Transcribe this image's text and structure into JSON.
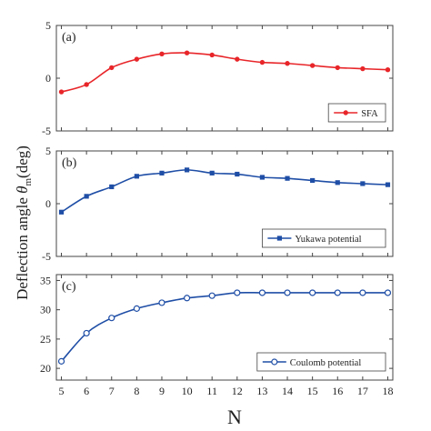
{
  "chart_data": [
    {
      "type": "line",
      "panel_label": "(a)",
      "x": [
        5,
        6,
        7,
        8,
        9,
        10,
        11,
        12,
        13,
        14,
        15,
        16,
        17,
        18
      ],
      "series": [
        {
          "name": "SFA",
          "values": [
            -1.3,
            -0.6,
            1.0,
            1.8,
            2.3,
            2.4,
            2.2,
            1.8,
            1.5,
            1.4,
            1.2,
            1.0,
            0.9,
            0.8
          ],
          "color": "#e8262a",
          "marker": "filled-circle"
        }
      ],
      "ylim": [
        -5,
        5
      ],
      "yticks": [
        "-5",
        "0",
        "5"
      ],
      "legend_placement": "bottom-right"
    },
    {
      "type": "line",
      "panel_label": "(b)",
      "x": [
        5,
        6,
        7,
        8,
        9,
        10,
        11,
        12,
        13,
        14,
        15,
        16,
        17,
        18
      ],
      "series": [
        {
          "name": "Yukawa potential",
          "values": [
            -0.8,
            0.7,
            1.6,
            2.6,
            2.9,
            3.2,
            2.9,
            2.8,
            2.5,
            2.4,
            2.2,
            2.0,
            1.9,
            1.8
          ],
          "color": "#1f4ea6",
          "marker": "filled-square"
        }
      ],
      "ylim": [
        -5,
        5
      ],
      "yticks": [
        "-5",
        "0",
        "5"
      ],
      "legend_placement": "bottom-right"
    },
    {
      "type": "line",
      "panel_label": "(c)",
      "x": [
        5,
        6,
        7,
        8,
        9,
        10,
        11,
        12,
        13,
        14,
        15,
        16,
        17,
        18
      ],
      "series": [
        {
          "name": "Coulomb potential",
          "values": [
            21.2,
            26.0,
            28.6,
            30.2,
            31.2,
            32.0,
            32.4,
            32.9,
            32.9,
            32.9,
            32.9,
            32.9,
            32.9,
            32.9
          ],
          "color": "#1f4ea6",
          "marker": "open-circle"
        }
      ],
      "ylim": [
        18,
        36
      ],
      "yticks": [
        "20",
        "25",
        "30",
        "35"
      ],
      "legend_placement": "bottom-right"
    }
  ],
  "xaxis": {
    "label": "N",
    "ticks": [
      "5",
      "6",
      "7",
      "8",
      "9",
      "10",
      "11",
      "12",
      "13",
      "14",
      "15",
      "16",
      "17",
      "18"
    ],
    "xlim": [
      4.8,
      18.2
    ]
  },
  "yaxis": {
    "label_main": "Deflection angle ",
    "label_symbol": "θ",
    "label_subscript": "m",
    "label_unit": "(deg)"
  }
}
